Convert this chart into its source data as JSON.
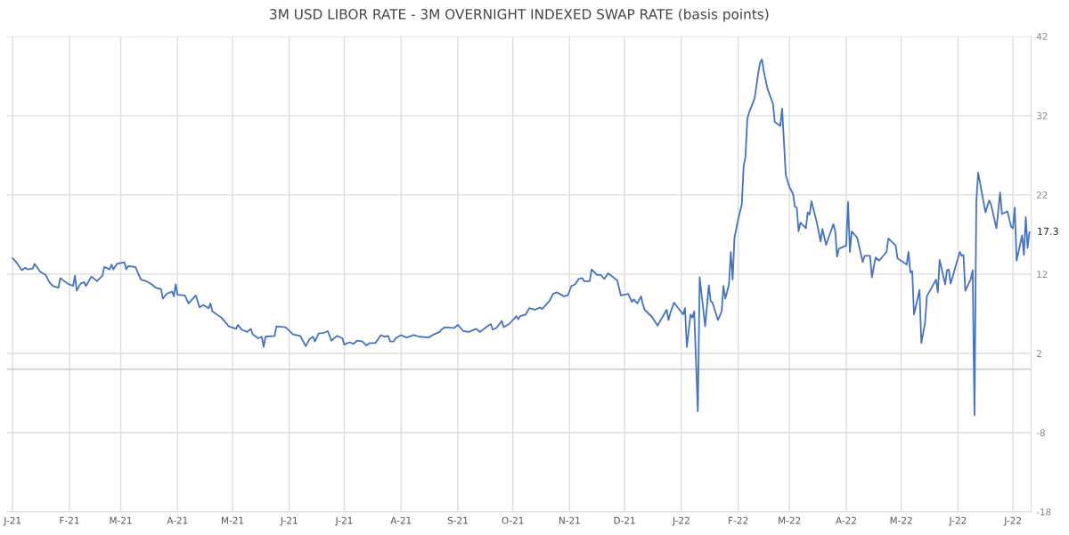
{
  "chart_data": {
    "type": "line",
    "title": "3M USD LIBOR RATE - 3M OVERNIGHT INDEXED SWAP RATE (basis points)",
    "series": [
      {
        "color": "#4472c4",
        "x": [
          "2021-01-01",
          "2021-01-03",
          "2021-01-06",
          "2021-01-08",
          "2021-01-09",
          "2021-01-12",
          "2021-01-13",
          "2021-01-16",
          "2021-01-19",
          "2021-01-21",
          "2021-01-23",
          "2021-01-26",
          "2021-01-27",
          "2021-01-31",
          "2021-02-03",
          "2021-02-04",
          "2021-02-05",
          "2021-02-07",
          "2021-02-09",
          "2021-02-10",
          "2021-02-13",
          "2021-02-16",
          "2021-02-19",
          "2021-02-20",
          "2021-02-23",
          "2021-02-24",
          "2021-02-25",
          "2021-02-27",
          "2021-03-03",
          "2021-03-04",
          "2021-03-05",
          "2021-03-09",
          "2021-03-12",
          "2021-03-15",
          "2021-03-18",
          "2021-03-20",
          "2021-03-23",
          "2021-03-24",
          "2021-03-26",
          "2021-03-29",
          "2021-03-30",
          "2021-03-31",
          "2021-04-01",
          "2021-04-05",
          "2021-04-07",
          "2021-04-11",
          "2021-04-13",
          "2021-04-15",
          "2021-04-18",
          "2021-04-19",
          "2021-04-20",
          "2021-04-25",
          "2021-04-29",
          "2021-05-03",
          "2021-05-04",
          "2021-05-06",
          "2021-05-09",
          "2021-05-11",
          "2021-05-12",
          "2021-05-15",
          "2021-05-17",
          "2021-05-18",
          "2021-05-19",
          "2021-05-24",
          "2021-05-25",
          "2021-05-30",
          "2021-06-03",
          "2021-06-07",
          "2021-06-10",
          "2021-06-12",
          "2021-06-14",
          "2021-06-15",
          "2021-06-17",
          "2021-06-20",
          "2021-06-22",
          "2021-06-24",
          "2021-06-27",
          "2021-06-30",
          "2021-07-01",
          "2021-07-04",
          "2021-07-06",
          "2021-07-08",
          "2021-07-11",
          "2021-07-13",
          "2021-07-15",
          "2021-07-18",
          "2021-07-21",
          "2021-07-23",
          "2021-07-25",
          "2021-07-26",
          "2021-07-28",
          "2021-07-29",
          "2021-08-01",
          "2021-08-04",
          "2021-08-08",
          "2021-08-11",
          "2021-08-16",
          "2021-08-19",
          "2021-08-22",
          "2021-08-23",
          "2021-08-25",
          "2021-08-30",
          "2021-09-01",
          "2021-09-04",
          "2021-09-07",
          "2021-09-11",
          "2021-09-13",
          "2021-09-17",
          "2021-09-19",
          "2021-09-20",
          "2021-09-22",
          "2021-09-25",
          "2021-09-26",
          "2021-09-29",
          "2021-10-03",
          "2021-10-04",
          "2021-10-05",
          "2021-10-08",
          "2021-10-10",
          "2021-10-13",
          "2021-10-16",
          "2021-10-17",
          "2021-10-21",
          "2021-10-23",
          "2021-10-25",
          "2021-10-29",
          "2021-10-31",
          "2021-11-02",
          "2021-11-04",
          "2021-11-06",
          "2021-11-08",
          "2021-11-09",
          "2021-11-12",
          "2021-11-13",
          "2021-11-16",
          "2021-11-18",
          "2021-11-20",
          "2021-11-22",
          "2021-11-27",
          "2021-11-29",
          "2021-12-03",
          "2021-12-05",
          "2021-12-06",
          "2021-12-08",
          "2021-12-10",
          "2021-12-11",
          "2021-12-12",
          "2021-12-16",
          "2021-12-19",
          "2021-12-24",
          "2021-12-25",
          "2021-12-26",
          "2021-12-28",
          "2021-12-31",
          "2022-01-02",
          "2022-01-03",
          "2022-01-04",
          "2022-01-06",
          "2022-01-07",
          "2022-01-08",
          "2022-01-10",
          "2022-01-11",
          "2022-01-14",
          "2022-01-16",
          "2022-01-17",
          "2022-01-18",
          "2022-01-21",
          "2022-01-23",
          "2022-01-24",
          "2022-01-25",
          "2022-01-27",
          "2022-01-28",
          "2022-01-29",
          "2022-01-30",
          "2022-02-01",
          "2022-02-03",
          "2022-02-04",
          "2022-02-05",
          "2022-02-06",
          "2022-02-07",
          "2022-02-10",
          "2022-02-12",
          "2022-02-13",
          "2022-02-14",
          "2022-02-15",
          "2022-02-17",
          "2022-02-20",
          "2022-02-21",
          "2022-02-24",
          "2022-02-25",
          "2022-02-27",
          "2022-03-01",
          "2022-03-03",
          "2022-03-04",
          "2022-03-05",
          "2022-03-06",
          "2022-03-07",
          "2022-03-10",
          "2022-03-11",
          "2022-03-12",
          "2022-03-13",
          "2022-03-16",
          "2022-03-18",
          "2022-03-19",
          "2022-03-21",
          "2022-03-25",
          "2022-03-26",
          "2022-03-27",
          "2022-03-28",
          "2022-04-01",
          "2022-04-02",
          "2022-04-03",
          "2022-04-04",
          "2022-04-07",
          "2022-04-10",
          "2022-04-11",
          "2022-04-14",
          "2022-04-15",
          "2022-04-17",
          "2022-04-19",
          "2022-04-23",
          "2022-04-24",
          "2022-04-28",
          "2022-04-29",
          "2022-05-04",
          "2022-05-05",
          "2022-05-06",
          "2022-05-07",
          "2022-05-08",
          "2022-05-11",
          "2022-05-12",
          "2022-05-14",
          "2022-05-15",
          "2022-05-20",
          "2022-05-21",
          "2022-05-22",
          "2022-05-25",
          "2022-05-26",
          "2022-05-27",
          "2022-05-28",
          "2022-06-02",
          "2022-06-03",
          "2022-06-04",
          "2022-06-05",
          "2022-06-08",
          "2022-06-09",
          "2022-06-10",
          "2022-06-11",
          "2022-06-12",
          "2022-06-14",
          "2022-06-16",
          "2022-06-18",
          "2022-06-19",
          "2022-06-22",
          "2022-06-24",
          "2022-06-25",
          "2022-06-28",
          "2022-06-30",
          "2022-07-01",
          "2022-07-02",
          "2022-07-03",
          "2022-07-06",
          "2022-07-07",
          "2022-07-08",
          "2022-07-09",
          "2022-07-10"
        ],
        "values": [
          14.0,
          13.5,
          12.5,
          12.8,
          12.6,
          12.7,
          13.3,
          12.3,
          11.9,
          11.0,
          10.5,
          10.3,
          11.5,
          10.8,
          10.5,
          11.8,
          9.9,
          10.8,
          11.0,
          10.5,
          11.7,
          11.1,
          11.8,
          12.9,
          12.6,
          13.2,
          12.6,
          13.3,
          13.5,
          12.6,
          13.0,
          12.9,
          11.3,
          11.1,
          10.7,
          10.3,
          10.1,
          8.9,
          9.5,
          9.8,
          9.2,
          10.7,
          9.4,
          9.3,
          8.3,
          9.3,
          7.8,
          8.1,
          7.7,
          8.3,
          7.3,
          6.5,
          5.4,
          5.1,
          5.6,
          5.0,
          4.7,
          5.1,
          4.4,
          3.9,
          4.1,
          2.8,
          4.1,
          4.2,
          5.4,
          5.3,
          4.4,
          4.2,
          2.9,
          3.8,
          4.1,
          3.5,
          4.5,
          4.6,
          4.8,
          3.6,
          4.2,
          3.9,
          3.1,
          3.4,
          3.2,
          3.6,
          3.5,
          3.0,
          3.3,
          3.3,
          4.3,
          4.1,
          4.2,
          3.5,
          3.5,
          3.9,
          4.3,
          4.0,
          4.3,
          4.1,
          4.0,
          4.4,
          4.7,
          5.0,
          5.3,
          5.2,
          5.6,
          4.8,
          4.7,
          5.1,
          4.7,
          5.4,
          5.7,
          5.0,
          5.2,
          6.1,
          5.3,
          5.7,
          6.7,
          6.3,
          6.7,
          6.9,
          7.7,
          7.5,
          7.8,
          7.6,
          8.6,
          9.5,
          9.7,
          9.2,
          9.3,
          10.5,
          10.7,
          11.4,
          11.5,
          11.1,
          11.1,
          12.6,
          11.9,
          11.9,
          11.4,
          12.1,
          11.2,
          9.3,
          9.5,
          8.5,
          8.8,
          8.3,
          9.2,
          8.2,
          7.5,
          6.6,
          5.5,
          7.5,
          6.2,
          7.1,
          8.4,
          7.5,
          6.9,
          7.7,
          2.8,
          6.9,
          6.5,
          7.3,
          -5.3,
          11.6,
          5.4,
          10.6,
          8.6,
          8.4,
          6.2,
          7.3,
          10.5,
          8.9,
          10.7,
          14.8,
          11.3,
          16.6,
          18.9,
          20.8,
          25.6,
          26.8,
          31.6,
          32.4,
          34.2,
          37.4,
          38.7,
          39.1,
          37.6,
          35.4,
          33.5,
          31.2,
          30.7,
          32.9,
          24.5,
          23.0,
          22.1,
          20.5,
          20.4,
          17.4,
          18.5,
          17.8,
          19.8,
          19.5,
          21.2,
          18.5,
          16.1,
          17.7,
          15.7,
          18.3,
          17.4,
          14.2,
          15.2,
          15.6,
          21.1,
          14.8,
          17.4,
          16.6,
          13.5,
          14.3,
          14.3,
          11.6,
          14.1,
          13.7,
          14.8,
          16.5,
          15.6,
          14.0,
          13.2,
          14.8,
          12.2,
          12.4,
          6.9,
          10.0,
          3.3,
          5.8,
          9.2,
          11.3,
          9.7,
          13.8,
          10.7,
          12.5,
          12.6,
          10.8,
          14.8,
          14.3,
          14.4,
          9.9,
          11.4,
          12.5,
          -5.8,
          21.1,
          24.8,
          22.3,
          19.8,
          21.3,
          20.8,
          17.8,
          22.3,
          19.6,
          19.9,
          18.0,
          17.8,
          20.4,
          13.7,
          16.9,
          14.4,
          19.2,
          15.3,
          17.3
        ]
      }
    ],
    "xlim": [
      "2020-12-29",
      "2022-07-11"
    ],
    "xticks": [
      {
        "value": "2021-01-01",
        "label": "J-21"
      },
      {
        "value": "2021-02-01",
        "label": "F-21"
      },
      {
        "value": "2021-03-01",
        "label": "M-21"
      },
      {
        "value": "2021-04-01",
        "label": "A-21"
      },
      {
        "value": "2021-05-01",
        "label": "M-21"
      },
      {
        "value": "2021-06-01",
        "label": "J-21"
      },
      {
        "value": "2021-07-01",
        "label": "J-21"
      },
      {
        "value": "2021-08-01",
        "label": "A-21"
      },
      {
        "value": "2021-09-01",
        "label": "S-21"
      },
      {
        "value": "2021-10-01",
        "label": "O-21"
      },
      {
        "value": "2021-11-01",
        "label": "N-21"
      },
      {
        "value": "2021-12-01",
        "label": "D-21"
      },
      {
        "value": "2022-01-01",
        "label": "J-22"
      },
      {
        "value": "2022-02-01",
        "label": "F-22"
      },
      {
        "value": "2022-03-01",
        "label": "M-22"
      },
      {
        "value": "2022-04-01",
        "label": "A-22"
      },
      {
        "value": "2022-05-01",
        "label": "M-22"
      },
      {
        "value": "2022-06-01",
        "label": "J-22"
      },
      {
        "value": "2022-07-01",
        "label": "J-22"
      }
    ],
    "ylim": [
      -18,
      42
    ],
    "yticks": [
      -18,
      -8,
      2,
      12,
      22,
      32,
      42
    ],
    "grid": true,
    "ref_lines": [
      {
        "axis": "y",
        "value": 0,
        "color": "#c8c8c8"
      }
    ],
    "annotations": [
      {
        "text": "17.3",
        "x": "2022-07-10",
        "y": 17.3
      }
    ]
  }
}
